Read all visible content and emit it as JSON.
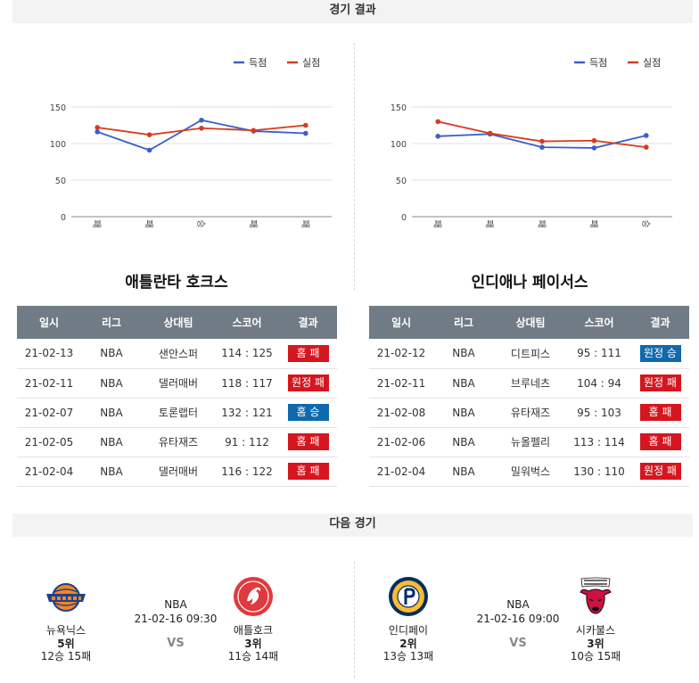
{
  "sections": {
    "results_title": "경기 결과",
    "next_title": "다음 경기"
  },
  "legend": {
    "scored": "득점",
    "conceded": "실점",
    "scored_color": "#3a5fcd",
    "conceded_color": "#d63b1d"
  },
  "table_headers": {
    "date": "일시",
    "league": "리그",
    "opponent": "상대팀",
    "score": "스코어",
    "result": "결과"
  },
  "teams": [
    {
      "name": "애틀란타 호크스",
      "games": [
        {
          "date": "21-02-13",
          "league": "NBA",
          "opponent": "샌안스퍼",
          "score": "114 : 125",
          "result": "홈 패",
          "outcome": "lose"
        },
        {
          "date": "21-02-11",
          "league": "NBA",
          "opponent": "댈러매버",
          "score": "118 : 117",
          "result": "원정 패",
          "outcome": "lose"
        },
        {
          "date": "21-02-07",
          "league": "NBA",
          "opponent": "토론랩터",
          "score": "132 : 121",
          "result": "홈 승",
          "outcome": "win"
        },
        {
          "date": "21-02-05",
          "league": "NBA",
          "opponent": "유타재즈",
          "score": "91 : 112",
          "result": "홈 패",
          "outcome": "lose"
        },
        {
          "date": "21-02-04",
          "league": "NBA",
          "opponent": "댈러매버",
          "score": "116 : 122",
          "result": "홈 패",
          "outcome": "lose"
        }
      ]
    },
    {
      "name": "인디애나 페이서스",
      "games": [
        {
          "date": "21-02-12",
          "league": "NBA",
          "opponent": "디트피스",
          "score": "95 : 111",
          "result": "원정 승",
          "outcome": "win"
        },
        {
          "date": "21-02-11",
          "league": "NBA",
          "opponent": "브루네츠",
          "score": "104 : 94",
          "result": "원정 패",
          "outcome": "lose"
        },
        {
          "date": "21-02-08",
          "league": "NBA",
          "opponent": "유타재즈",
          "score": "95 : 103",
          "result": "홈 패",
          "outcome": "lose"
        },
        {
          "date": "21-02-06",
          "league": "NBA",
          "opponent": "뉴올펠리",
          "score": "113 : 114",
          "result": "홈 패",
          "outcome": "lose"
        },
        {
          "date": "21-02-04",
          "league": "NBA",
          "opponent": "밀워벅스",
          "score": "130 : 110",
          "result": "원정 패",
          "outcome": "lose"
        }
      ]
    }
  ],
  "chart_data": [
    {
      "type": "line",
      "categories": [
        "패",
        "패",
        "승",
        "패",
        "패"
      ],
      "series": [
        {
          "name": "득점",
          "values": [
            116,
            91,
            132,
            117,
            114
          ]
        },
        {
          "name": "실점",
          "values": [
            122,
            112,
            121,
            118,
            125
          ]
        }
      ],
      "yticks": [
        0,
        50,
        100,
        150
      ],
      "ylim": [
        0,
        150
      ],
      "grid": true,
      "legend_position": "top-right"
    },
    {
      "type": "line",
      "categories": [
        "패",
        "패",
        "패",
        "패",
        "승"
      ],
      "series": [
        {
          "name": "득점",
          "values": [
            110,
            113,
            95,
            94,
            111
          ]
        },
        {
          "name": "실점",
          "values": [
            130,
            114,
            103,
            104,
            95
          ]
        }
      ],
      "yticks": [
        0,
        50,
        100,
        150
      ],
      "ylim": [
        0,
        150
      ],
      "grid": true,
      "legend_position": "top-right"
    }
  ],
  "next_games": [
    {
      "league": "NBA",
      "datetime": "21-02-16 09:30",
      "vs": "VS",
      "home": {
        "name": "뉴욕닉스",
        "rank": "5위",
        "record": "12승 15패",
        "logo_icon": "knicks-logo",
        "logo_text": "NEW YORK KNICKS"
      },
      "away": {
        "name": "애틀호크",
        "rank": "3위",
        "record": "11승 14패",
        "logo_icon": "hawks-logo",
        "logo_text": "ATLANTA HAWKS"
      }
    },
    {
      "league": "NBA",
      "datetime": "21-02-16 09:00",
      "vs": "VS",
      "home": {
        "name": "인디페이",
        "rank": "2위",
        "record": "13승 13패",
        "logo_icon": "pacers-logo",
        "logo_text": "INDIANA PACERS"
      },
      "away": {
        "name": "시카불스",
        "rank": "3위",
        "record": "10승 15패",
        "logo_icon": "bulls-logo",
        "logo_text": "CHICAGO BULLS"
      }
    }
  ]
}
